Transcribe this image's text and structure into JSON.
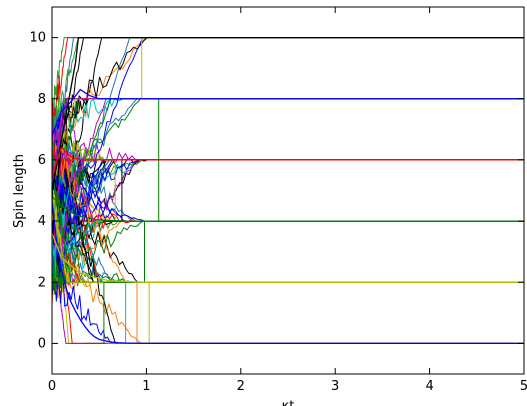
{
  "chart_data": {
    "type": "line",
    "title": "",
    "xlabel": "κt",
    "ylabel": "Spin length",
    "xlim": [
      0,
      5
    ],
    "ylim": [
      -1,
      11
    ],
    "xticks": [
      0,
      1,
      2,
      3,
      4,
      5
    ],
    "yticks": [
      0,
      2,
      4,
      6,
      8,
      10
    ],
    "grid": false,
    "legend": "none",
    "description_levels": [
      10,
      8,
      6,
      4,
      2,
      0
    ],
    "initial_range": [
      2,
      7.5
    ],
    "dominant_series": [
      {
        "color": "#0000ff",
        "x": [
          0,
          0.05,
          0.1,
          0.15,
          0.2,
          0.25,
          0.3,
          0.35,
          0.4,
          0.45,
          0.5,
          0.6,
          0.7,
          0.8,
          1.0,
          5.0
        ],
        "values": [
          4.6,
          3.3,
          2.4,
          1.8,
          1.35,
          1.05,
          0.78,
          0.55,
          0.35,
          0.22,
          0.13,
          0.06,
          0.02,
          0.01,
          0.0,
          0.0
        ]
      },
      {
        "color": "#0000ff",
        "x": [
          0,
          0.1,
          0.2,
          0.3,
          0.4,
          0.5,
          0.6,
          5.0
        ],
        "values": [
          6.8,
          7.6,
          7.9,
          8.3,
          8.1,
          8.0,
          8.0,
          8.0
        ]
      },
      {
        "color": "#000000",
        "x": [
          0,
          0.15,
          0.25,
          0.28,
          5.0
        ],
        "values": [
          5.0,
          7.5,
          9.2,
          10.0,
          10.0
        ]
      },
      {
        "color": "#ff0000",
        "x": [
          0,
          0.1,
          0.2,
          0.3,
          0.5,
          5.0
        ],
        "values": [
          5.5,
          6.4,
          6.1,
          6.0,
          6.0,
          6.0
        ]
      },
      {
        "color": "#008000",
        "x": [
          0,
          0.1,
          0.25,
          0.45,
          0.8,
          5.0
        ],
        "values": [
          4.8,
          4.5,
          4.2,
          4.05,
          4.0,
          4.0
        ]
      },
      {
        "color": "#bfbf00",
        "x": [
          0,
          0.1,
          0.3,
          0.6,
          1.0,
          5.0
        ],
        "values": [
          3.6,
          2.8,
          2.3,
          2.05,
          2.0,
          2.0
        ]
      }
    ]
  }
}
